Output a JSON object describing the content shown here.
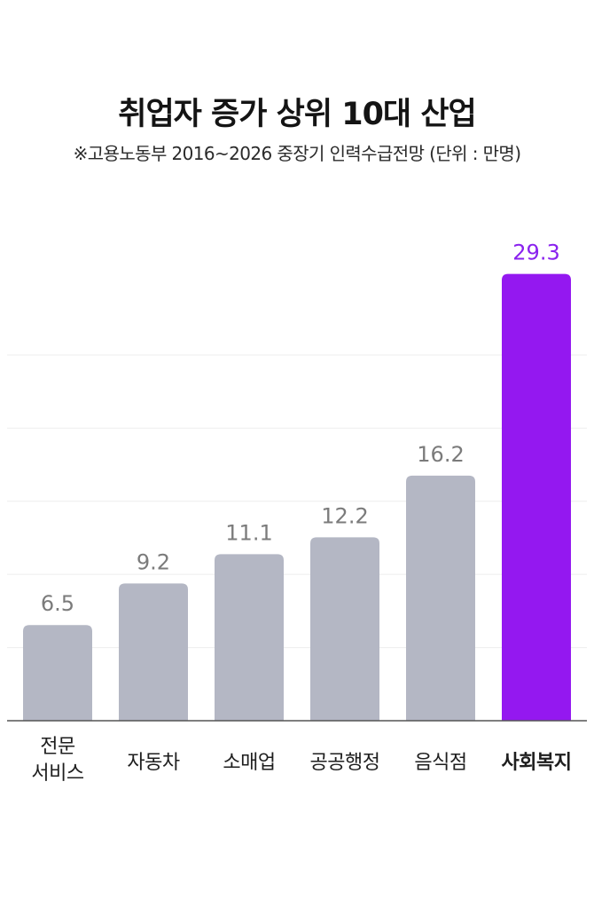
{
  "title": "취업자 증가 상위 10대 산업",
  "subtitle": "※고용노동부 2016~2026 중장기 인력수급전망 (단위 : 만명)",
  "colors": {
    "bar": "#b4b7c4",
    "highlight_bar": "#9418f0",
    "value_label": "#7b7b7b",
    "highlight_value": "#8a22ee",
    "category_label": "#1e1e1e",
    "gridline": "#eeeeee",
    "axis": "#555555"
  },
  "chart_data": {
    "type": "bar",
    "categories": [
      [
        "전문",
        "서비스"
      ],
      [
        "자동차"
      ],
      [
        "소매업"
      ],
      [
        "공공행정"
      ],
      [
        "음식점"
      ],
      [
        "사회복지"
      ]
    ],
    "values": [
      6.5,
      9.2,
      11.1,
      12.2,
      16.2,
      29.3
    ],
    "value_labels": [
      "6.5",
      "9.2",
      "11.1",
      "12.2",
      "16.2",
      "29.3"
    ],
    "highlight_index": 5,
    "ylim": [
      0,
      30
    ],
    "grid": true,
    "xlabel": "",
    "ylabel": ""
  }
}
